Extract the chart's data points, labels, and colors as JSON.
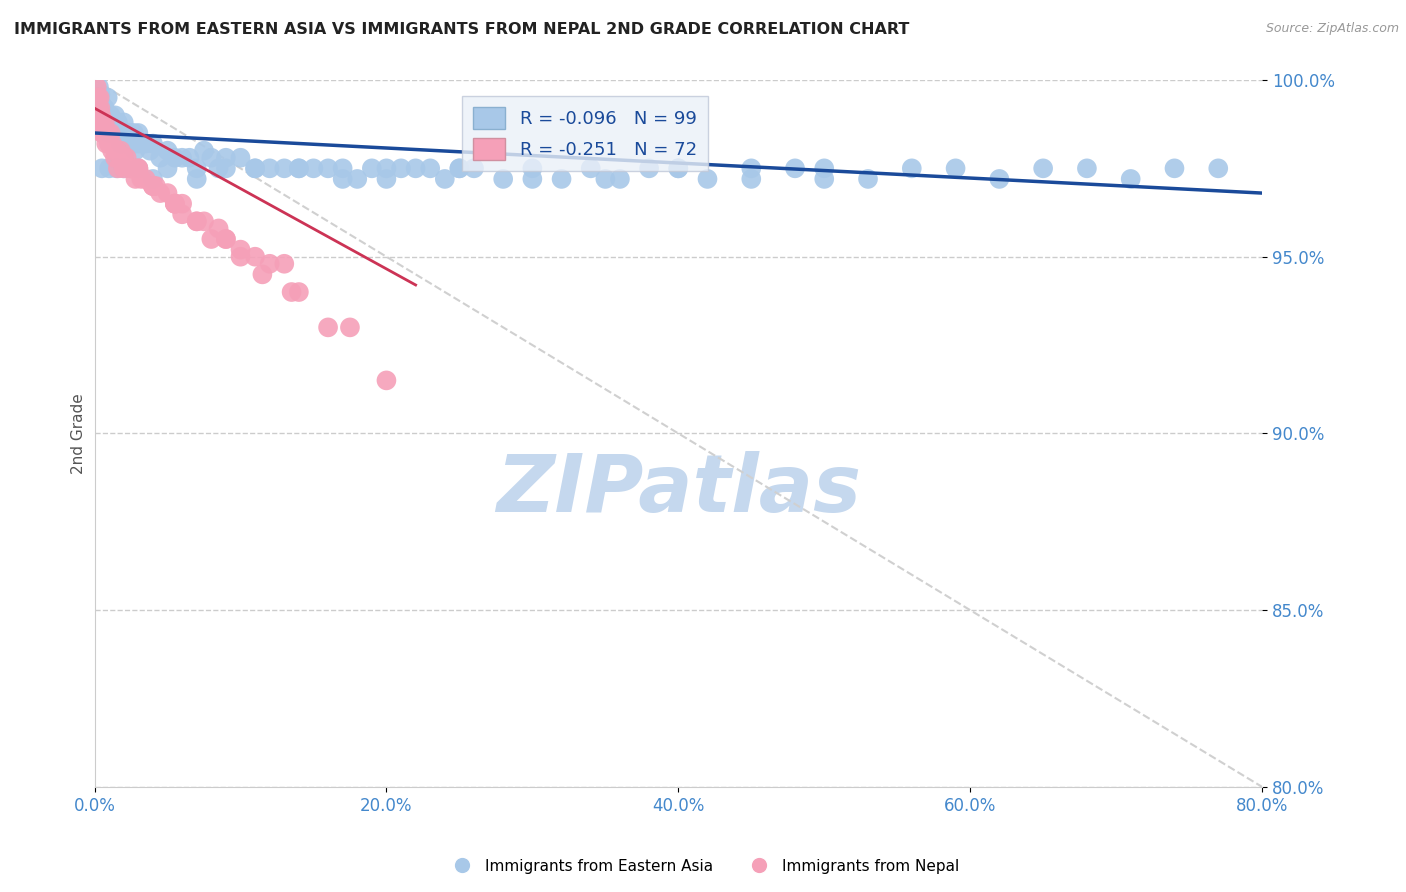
{
  "title": "IMMIGRANTS FROM EASTERN ASIA VS IMMIGRANTS FROM NEPAL 2ND GRADE CORRELATION CHART",
  "source": "Source: ZipAtlas.com",
  "xlabel_blue": "Immigrants from Eastern Asia",
  "xlabel_pink": "Immigrants from Nepal",
  "ylabel": "2nd Grade",
  "xlim": [
    0.0,
    80.0
  ],
  "ylim": [
    80.0,
    100.0
  ],
  "xticks": [
    0.0,
    20.0,
    40.0,
    60.0,
    80.0
  ],
  "yticks": [
    80.0,
    85.0,
    90.0,
    95.0,
    100.0
  ],
  "R_blue": -0.096,
  "N_blue": 99,
  "R_pink": -0.251,
  "N_pink": 72,
  "blue_color": "#a8c8e8",
  "pink_color": "#f5a0b8",
  "blue_line_color": "#1a4a9a",
  "pink_line_color": "#cc3355",
  "diag_color": "#d0d0d0",
  "legend_box_color": "#eaf0f8",
  "title_color": "#222222",
  "axis_label_color": "#555555",
  "tick_color": "#4488cc",
  "watermark_color": "#c5d8ee",
  "blue_scatter_x": [
    0.2,
    0.3,
    0.4,
    0.5,
    0.6,
    0.7,
    0.8,
    0.9,
    1.0,
    1.1,
    1.2,
    1.3,
    1.4,
    1.5,
    1.6,
    1.7,
    1.8,
    1.9,
    2.0,
    2.1,
    2.2,
    2.3,
    2.4,
    2.5,
    2.6,
    2.7,
    2.8,
    2.9,
    3.0,
    3.2,
    3.5,
    3.8,
    4.0,
    4.5,
    5.0,
    5.5,
    6.0,
    6.5,
    7.0,
    7.5,
    8.0,
    8.5,
    9.0,
    10.0,
    11.0,
    12.0,
    13.0,
    14.0,
    15.0,
    16.0,
    17.0,
    18.0,
    19.0,
    20.0,
    21.0,
    22.0,
    23.0,
    24.0,
    25.0,
    26.0,
    28.0,
    30.0,
    32.0,
    34.0,
    36.0,
    38.0,
    40.0,
    42.0,
    45.0,
    48.0,
    50.0,
    53.0,
    56.0,
    59.0,
    62.0,
    65.0,
    68.0,
    71.0,
    74.0,
    77.0,
    0.5,
    1.0,
    1.5,
    2.0,
    3.0,
    4.0,
    5.0,
    7.0,
    9.0,
    11.0,
    14.0,
    17.0,
    20.0,
    25.0,
    30.0,
    35.0,
    40.0,
    45.0,
    50.0
  ],
  "blue_scatter_y": [
    99.5,
    99.8,
    99.6,
    99.3,
    99.0,
    99.2,
    98.8,
    99.5,
    98.5,
    99.0,
    98.8,
    98.5,
    99.0,
    98.5,
    98.8,
    98.5,
    98.2,
    98.5,
    98.8,
    98.5,
    98.2,
    98.5,
    98.2,
    98.5,
    98.2,
    98.5,
    98.0,
    98.2,
    98.5,
    98.2,
    98.2,
    98.0,
    98.2,
    97.8,
    98.0,
    97.8,
    97.8,
    97.8,
    97.5,
    98.0,
    97.8,
    97.5,
    97.8,
    97.8,
    97.5,
    97.5,
    97.5,
    97.5,
    97.5,
    97.5,
    97.5,
    97.2,
    97.5,
    97.2,
    97.5,
    97.5,
    97.5,
    97.2,
    97.5,
    97.5,
    97.2,
    97.5,
    97.2,
    97.5,
    97.2,
    97.5,
    97.5,
    97.2,
    97.2,
    97.5,
    97.5,
    97.2,
    97.5,
    97.5,
    97.2,
    97.5,
    97.5,
    97.2,
    97.5,
    97.5,
    97.5,
    97.5,
    97.5,
    97.5,
    97.5,
    97.2,
    97.5,
    97.2,
    97.5,
    97.5,
    97.5,
    97.2,
    97.5,
    97.5,
    97.2,
    97.2,
    97.5,
    97.5,
    97.2
  ],
  "pink_scatter_x": [
    0.1,
    0.15,
    0.2,
    0.25,
    0.3,
    0.35,
    0.4,
    0.45,
    0.5,
    0.6,
    0.7,
    0.8,
    0.9,
    1.0,
    1.1,
    1.2,
    1.4,
    1.6,
    1.8,
    2.0,
    2.2,
    2.5,
    2.8,
    3.0,
    3.5,
    4.0,
    4.5,
    5.0,
    5.5,
    6.0,
    7.0,
    8.0,
    9.0,
    10.0,
    11.5,
    13.5,
    16.0,
    0.3,
    0.5,
    0.8,
    1.2,
    1.8,
    2.5,
    3.2,
    4.2,
    5.5,
    7.5,
    10.0,
    13.0,
    0.2,
    0.4,
    0.6,
    1.0,
    1.5,
    2.0,
    3.0,
    4.0,
    5.5,
    7.0,
    9.0,
    11.0,
    14.0,
    17.5,
    20.0,
    0.4,
    0.8,
    1.5,
    2.5,
    4.0,
    6.0,
    8.5,
    12.0
  ],
  "pink_scatter_y": [
    99.5,
    99.8,
    99.5,
    99.2,
    99.0,
    99.5,
    99.2,
    99.0,
    98.8,
    98.5,
    98.8,
    98.5,
    98.5,
    98.2,
    98.5,
    98.2,
    97.8,
    97.5,
    98.0,
    97.5,
    97.8,
    97.5,
    97.2,
    97.5,
    97.2,
    97.0,
    96.8,
    96.8,
    96.5,
    96.2,
    96.0,
    95.5,
    95.5,
    95.0,
    94.5,
    94.0,
    93.0,
    98.8,
    98.5,
    98.2,
    98.0,
    97.8,
    97.5,
    97.2,
    97.0,
    96.5,
    96.0,
    95.2,
    94.8,
    99.2,
    98.8,
    98.5,
    98.2,
    98.0,
    97.8,
    97.5,
    97.0,
    96.5,
    96.0,
    95.5,
    95.0,
    94.0,
    93.0,
    91.5,
    98.8,
    98.5,
    98.0,
    97.5,
    97.0,
    96.5,
    95.8,
    94.8
  ],
  "blue_trend_x": [
    0.0,
    80.0
  ],
  "blue_trend_y": [
    98.5,
    96.8
  ],
  "pink_trend_x": [
    0.0,
    22.0
  ],
  "pink_trend_y": [
    99.2,
    94.2
  ]
}
